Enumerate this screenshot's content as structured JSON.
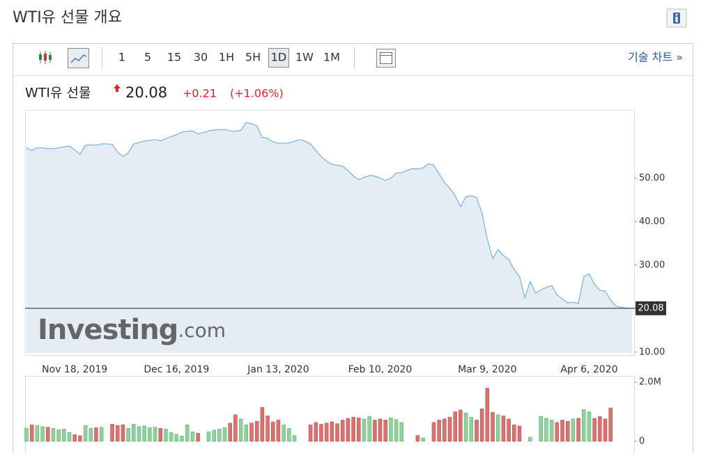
{
  "header": {
    "title": "WTI유 선물 개요"
  },
  "toolbar": {
    "intervals": [
      "1",
      "5",
      "15",
      "30",
      "1H",
      "5H",
      "1D",
      "1W",
      "1M"
    ],
    "selected": "1D",
    "link": "기술 차트 »"
  },
  "quote": {
    "name": "WTI유 선물",
    "price": "20.08",
    "change": "+0.21",
    "change_pct": "(+1.06%)"
  },
  "watermark": {
    "brand": "Investing",
    "suffix": ".com"
  },
  "chart_data": [
    {
      "type": "line",
      "color": "#7aaedc",
      "fill": "#e4edf4",
      "categories": [
        null,
        null,
        null,
        null,
        null,
        null,
        null,
        null,
        null,
        "Nov 18, 2019",
        null,
        null,
        null,
        null,
        null,
        null,
        null,
        null,
        null,
        null,
        null,
        null,
        null,
        null,
        null,
        null,
        null,
        null,
        "Dec 16, 2019",
        null,
        null,
        null,
        null,
        null,
        null,
        null,
        null,
        null,
        null,
        null,
        null,
        null,
        null,
        null,
        null,
        null,
        null,
        "Jan 13, 2020",
        null,
        null,
        null,
        null,
        null,
        null,
        null,
        null,
        null,
        null,
        null,
        null,
        null,
        null,
        null,
        null,
        null,
        null,
        "Feb 10, 2020",
        null,
        null,
        null,
        null,
        null,
        null,
        null,
        null,
        null,
        null,
        null,
        null,
        null,
        null,
        null,
        null,
        null,
        null,
        null,
        "Mar 9, 2020",
        null,
        null,
        null,
        null,
        null,
        null,
        null,
        null,
        null,
        null,
        null,
        null,
        null,
        null,
        null,
        null,
        null,
        null,
        "Apr 6, 2020",
        null,
        null,
        null,
        null,
        null,
        null,
        null,
        null
      ],
      "values": [
        57.0,
        56.4,
        57.0,
        57.0,
        56.8,
        56.8,
        57.0,
        57.2,
        57.4,
        56.5,
        55.5,
        57.6,
        57.7,
        57.6,
        57.9,
        57.9,
        57.8,
        56.0,
        55.0,
        55.8,
        57.9,
        58.2,
        58.6,
        58.7,
        58.9,
        58.6,
        59.1,
        59.6,
        60.0,
        60.6,
        60.8,
        60.9,
        60.2,
        60.5,
        60.9,
        61.1,
        61.2,
        61.2,
        60.9,
        60.8,
        61.0,
        62.8,
        62.6,
        62.0,
        59.4,
        59.2,
        58.4,
        58.0,
        58.1,
        58.1,
        58.5,
        58.9,
        58.5,
        57.9,
        56.4,
        55.0,
        53.9,
        53.2,
        53.0,
        52.8,
        51.8,
        50.5,
        49.7,
        50.2,
        50.6,
        50.5,
        50.0,
        49.5,
        50.0,
        51.2,
        51.3,
        51.8,
        52.2,
        52.1,
        52.4,
        53.3,
        53.0,
        51.0,
        49.0,
        47.7,
        46.0,
        43.5,
        45.7,
        46.0,
        45.5,
        42.0,
        36.0,
        31.5,
        33.6,
        32.2,
        31.3,
        29.0,
        27.4,
        22.5,
        26.2,
        23.6,
        24.3,
        24.9,
        25.3,
        23.2,
        22.2,
        21.3,
        21.5,
        21.2,
        27.3,
        28.0,
        25.6,
        24.2,
        24.0,
        22.0,
        20.6,
        20.3,
        20.1,
        20.08
      ],
      "ylim": [
        9.8,
        65.7
      ],
      "yticks": [
        {
          "value": 10,
          "label": "10.00"
        },
        {
          "value": 30,
          "label": "30.00"
        },
        {
          "value": 40,
          "label": "40.00"
        },
        {
          "value": 50,
          "label": "50.00"
        }
      ],
      "last_price": {
        "value": 20.08,
        "label": "20.08"
      }
    },
    {
      "type": "bar",
      "color_up": "#8fd19e",
      "color_down": "#d9716f",
      "values": [
        450000,
        560000,
        540000,
        500000,
        480000,
        440000,
        400000,
        420000,
        300000,
        230000,
        190000,
        540000,
        440000,
        460000,
        480000,
        null,
        580000,
        540000,
        560000,
        440000,
        580000,
        500000,
        520000,
        460000,
        480000,
        440000,
        420000,
        300000,
        240000,
        180000,
        560000,
        320000,
        280000,
        null,
        320000,
        380000,
        420000,
        470000,
        620000,
        900000,
        760000,
        560000,
        620000,
        680000,
        1150000,
        860000,
        660000,
        720000,
        560000,
        440000,
        200000,
        null,
        null,
        560000,
        640000,
        580000,
        620000,
        660000,
        600000,
        720000,
        780000,
        820000,
        800000,
        760000,
        840000,
        720000,
        760000,
        720000,
        800000,
        740000,
        640000,
        null,
        null,
        200000,
        120000,
        null,
        640000,
        720000,
        760000,
        820000,
        1000000,
        1060000,
        960000,
        820000,
        720000,
        1100000,
        1800000,
        980000,
        900000,
        860000,
        760000,
        560000,
        520000,
        null,
        140000,
        null,
        840000,
        780000,
        720000,
        640000,
        720000,
        680000,
        760000,
        780000,
        1080000,
        1000000,
        780000,
        840000,
        760000,
        1130000,
        null,
        null,
        null,
        null
      ],
      "ylim": [
        0,
        2000000
      ],
      "yticks": [
        0,
        {
          "value": 2000000,
          "label": "2.0M"
        }
      ]
    }
  ]
}
